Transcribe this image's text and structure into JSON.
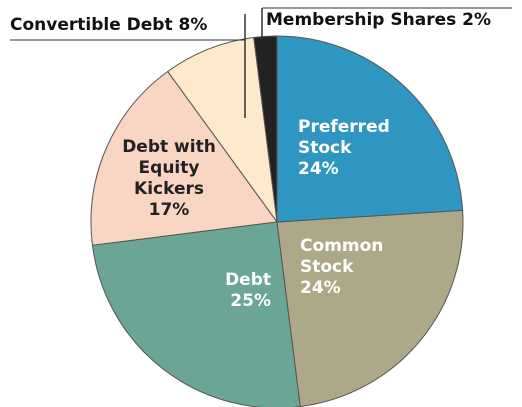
{
  "chart_data": {
    "type": "pie",
    "categories": [
      "Preferred Stock",
      "Common Stock",
      "Debt",
      "Debt with Equity Kickers",
      "Convertible Debt",
      "Membership Shares"
    ],
    "values": [
      24,
      24,
      25,
      17,
      8,
      2
    ],
    "value_labels": [
      "24%",
      "24%",
      "25%",
      "17%",
      "8%",
      "2%"
    ],
    "colors": [
      "#2e96c0",
      "#aca888",
      "#6ba596",
      "#f9d5c4",
      "#fde9cc",
      "#222222"
    ]
  }
}
